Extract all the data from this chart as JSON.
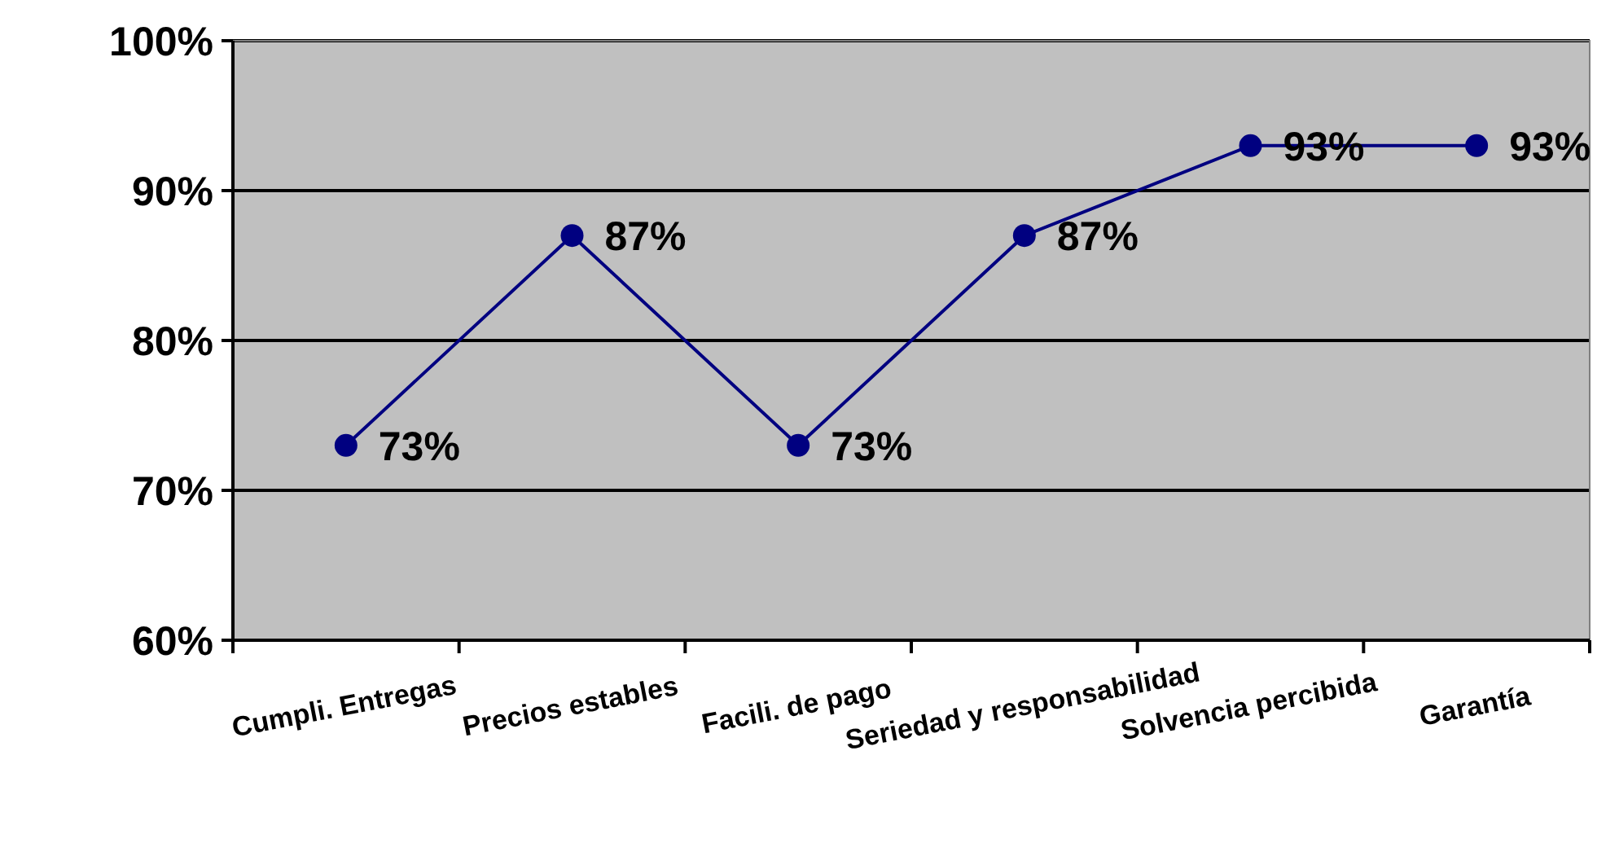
{
  "chart_data": {
    "type": "line",
    "categories": [
      "Cumpli. Entregas",
      "Precios estables",
      "Facili. de pago",
      "Seriedad y responsabilidad",
      "Solvencia  percibida",
      "Garantía"
    ],
    "series": [
      {
        "color": "#000080",
        "values": [
          73,
          87,
          73,
          87,
          93,
          93
        ],
        "value_labels": [
          "73%",
          "87%",
          "73%",
          "87%",
          "93%",
          "93%"
        ]
      }
    ],
    "ylim": [
      60,
      100
    ],
    "yticks": [
      {
        "value": 60,
        "label": "60%"
      },
      {
        "value": 70,
        "label": "70%"
      },
      {
        "value": 80,
        "label": "80%"
      },
      {
        "value": 90,
        "label": "90%"
      },
      {
        "value": 100,
        "label": "100%"
      }
    ],
    "grid": "y",
    "marker": "circle",
    "line_style": "solid"
  }
}
